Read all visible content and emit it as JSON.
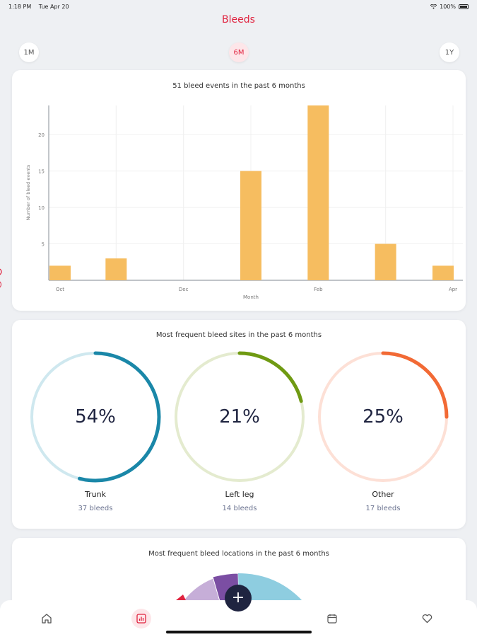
{
  "status_bar": {
    "time": "1:18 PM",
    "date": "Tue Apr 20",
    "battery": "100%"
  },
  "header": {
    "title": "Bleeds"
  },
  "range_tabs": [
    {
      "label": "1M",
      "active": false
    },
    {
      "label": "6M",
      "active": true
    },
    {
      "label": "1Y",
      "active": false
    }
  ],
  "bleed_events": {
    "title": "51 bleed events in the past 6 months"
  },
  "chart_data": {
    "type": "bar",
    "title": "51 bleed events in the past 6 months",
    "xlabel": "Month",
    "ylabel": "Number of bleed events",
    "x_tick_labels": [
      "Oct",
      "Dec",
      "Feb",
      "Apr"
    ],
    "y_ticks": [
      5,
      10,
      15,
      20
    ],
    "ylim": [
      0,
      24
    ],
    "bar_positions": [
      0,
      1,
      2,
      3,
      4,
      5,
      6
    ],
    "tick_positions": [
      0,
      2,
      4,
      6
    ],
    "values": [
      2,
      3,
      0,
      15,
      24,
      5,
      2
    ],
    "bar_color": "#f6bd60",
    "grid": true
  },
  "bleed_sites": {
    "title": "Most frequent bleed sites in the past 6 months",
    "items": [
      {
        "percent_label": "54%",
        "fraction": 0.54,
        "label": "Trunk",
        "count_label": "37 bleeds",
        "color": "#1a87a8",
        "track_color": "#cfe8ef"
      },
      {
        "percent_label": "21%",
        "fraction": 0.21,
        "label": "Left leg",
        "count_label": "14 bleeds",
        "color": "#6f9a12",
        "track_color": "#e4ebcf"
      },
      {
        "percent_label": "25%",
        "fraction": 0.25,
        "label": "Other",
        "count_label": "17 bleeds",
        "color": "#f26a35",
        "track_color": "#fde0d6"
      }
    ]
  },
  "bleed_locations": {
    "title": "Most frequent bleed locations in the past 6 months",
    "colors": [
      "#c6aed8",
      "#7b4ea3",
      "#8ecde0",
      "#e0233f"
    ]
  },
  "tab_bar": {
    "items": [
      {
        "icon": "home-icon"
      },
      {
        "icon": "chart-icon",
        "active": true
      },
      {
        "icon": "calendar-icon"
      },
      {
        "icon": "heart-icon"
      }
    ],
    "fab_label": "+"
  }
}
